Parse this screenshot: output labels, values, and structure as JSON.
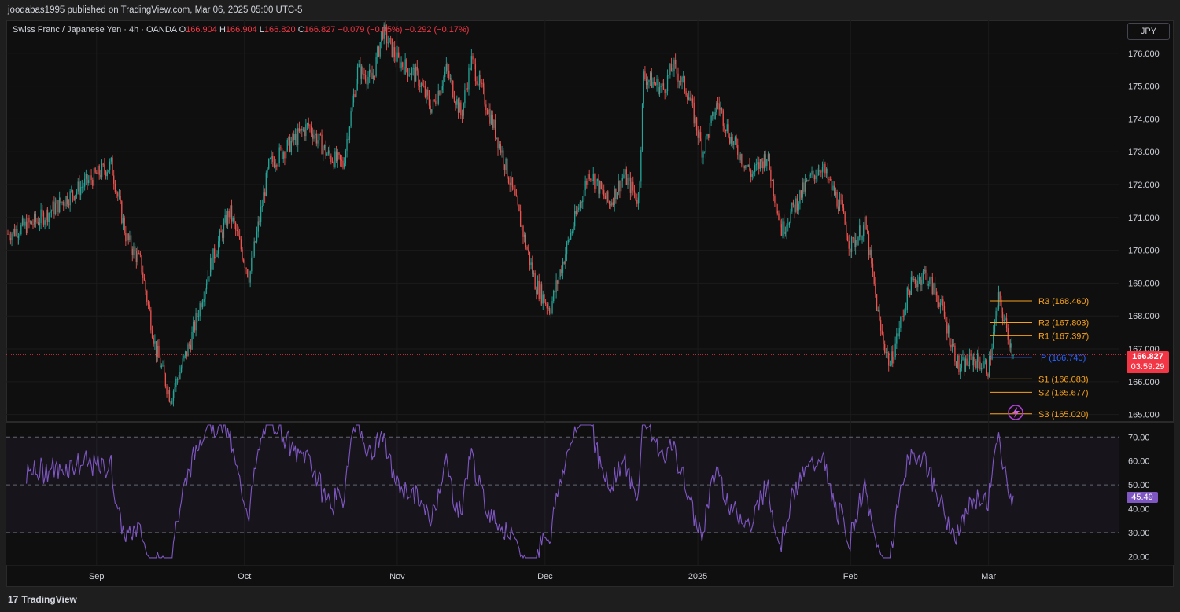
{
  "header": {
    "published_by": "joodabas1995 published on TradingView.com, Mar 06, 2025 05:00 UTC-5"
  },
  "legend": {
    "symbol": "Swiss Franc / Japanese Yen · 4h · OANDA",
    "open_label": "O",
    "open": "166.904",
    "high_label": "H",
    "high": "166.904",
    "low_label": "L",
    "low": "166.820",
    "close_label": "C",
    "close": "166.827",
    "change": "−0.079 (−0.05%)",
    "change2": "−0.292 (−0.17%)"
  },
  "currency_button": "JPY",
  "last_price": {
    "price": "166.827",
    "countdown": "03:59:29"
  },
  "rsi_value": "45.49",
  "footer": {
    "brand": "TradingView",
    "logo": "17"
  },
  "colors": {
    "up": "#26a69a",
    "down": "#ef5350",
    "pivot_resistance": "#f7a21b",
    "pivot_point": "#2962ff",
    "rsi_line": "#7e57c2",
    "last_price": "#f23645"
  },
  "chart_data": [
    {
      "type": "candlestick",
      "title": "Swiss Franc / Japanese Yen · 4h · OANDA",
      "x_ticks": [
        "Sep",
        "Oct",
        "Nov",
        "Dec",
        "2025",
        "Feb",
        "Mar"
      ],
      "y_ticks": [
        165.0,
        166.0,
        167.0,
        168.0,
        169.0,
        170.0,
        171.0,
        172.0,
        173.0,
        174.0,
        175.0,
        176.0
      ],
      "ylim": [
        164.8,
        177.0
      ],
      "approx_close_path": [
        {
          "date": "2024-08-14",
          "price": 170.5
        },
        {
          "date": "2024-08-20",
          "price": 170.9
        },
        {
          "date": "2024-08-26",
          "price": 171.6
        },
        {
          "date": "2024-09-01",
          "price": 172.3
        },
        {
          "date": "2024-09-04",
          "price": 172.6
        },
        {
          "date": "2024-09-07",
          "price": 170.4
        },
        {
          "date": "2024-09-10",
          "price": 169.6
        },
        {
          "date": "2024-09-13",
          "price": 167.0
        },
        {
          "date": "2024-09-16",
          "price": 165.5
        },
        {
          "date": "2024-09-20",
          "price": 167.2
        },
        {
          "date": "2024-09-24",
          "price": 169.5
        },
        {
          "date": "2024-09-28",
          "price": 171.2
        },
        {
          "date": "2024-10-02",
          "price": 169.2
        },
        {
          "date": "2024-10-06",
          "price": 172.6
        },
        {
          "date": "2024-10-10",
          "price": 173.2
        },
        {
          "date": "2024-10-14",
          "price": 173.8
        },
        {
          "date": "2024-10-18",
          "price": 172.9
        },
        {
          "date": "2024-10-21",
          "price": 172.6
        },
        {
          "date": "2024-10-24",
          "price": 175.5
        },
        {
          "date": "2024-10-27",
          "price": 175.2
        },
        {
          "date": "2024-10-29",
          "price": 176.7
        },
        {
          "date": "2024-11-01",
          "price": 175.8
        },
        {
          "date": "2024-11-05",
          "price": 175.3
        },
        {
          "date": "2024-11-08",
          "price": 174.3
        },
        {
          "date": "2024-11-11",
          "price": 175.5
        },
        {
          "date": "2024-11-14",
          "price": 174.1
        },
        {
          "date": "2024-11-16",
          "price": 175.8
        },
        {
          "date": "2024-11-19",
          "price": 174.5
        },
        {
          "date": "2024-11-22",
          "price": 173.1
        },
        {
          "date": "2024-11-25",
          "price": 171.5
        },
        {
          "date": "2024-11-29",
          "price": 169.0
        },
        {
          "date": "2024-12-02",
          "price": 168.2
        },
        {
          "date": "2024-12-06",
          "price": 170.4
        },
        {
          "date": "2024-12-10",
          "price": 172.4
        },
        {
          "date": "2024-12-14",
          "price": 171.4
        },
        {
          "date": "2024-12-17",
          "price": 172.3
        },
        {
          "date": "2024-12-20",
          "price": 171.5
        },
        {
          "date": "2024-12-21",
          "price": 175.3
        },
        {
          "date": "2024-12-25",
          "price": 174.9
        },
        {
          "date": "2024-12-27",
          "price": 175.6
        },
        {
          "date": "2024-12-30",
          "price": 174.8
        },
        {
          "date": "2025-01-02",
          "price": 173.0
        },
        {
          "date": "2025-01-05",
          "price": 174.5
        },
        {
          "date": "2025-01-08",
          "price": 173.3
        },
        {
          "date": "2025-01-12",
          "price": 172.3
        },
        {
          "date": "2025-01-15",
          "price": 172.9
        },
        {
          "date": "2025-01-18",
          "price": 170.6
        },
        {
          "date": "2025-01-23",
          "price": 172.0
        },
        {
          "date": "2025-01-26",
          "price": 172.6
        },
        {
          "date": "2025-01-30",
          "price": 171.3
        },
        {
          "date": "2025-02-01",
          "price": 170.1
        },
        {
          "date": "2025-02-04",
          "price": 170.8
        },
        {
          "date": "2025-02-07",
          "price": 167.6
        },
        {
          "date": "2025-02-09",
          "price": 166.5
        },
        {
          "date": "2025-02-13",
          "price": 168.9
        },
        {
          "date": "2025-02-16",
          "price": 169.3
        },
        {
          "date": "2025-02-19",
          "price": 168.5
        },
        {
          "date": "2025-02-23",
          "price": 166.4
        },
        {
          "date": "2025-02-26",
          "price": 166.7
        },
        {
          "date": "2025-03-01",
          "price": 166.4
        },
        {
          "date": "2025-03-03",
          "price": 168.5
        },
        {
          "date": "2025-03-06",
          "price": 166.827
        }
      ],
      "pivots": [
        {
          "name": "R3",
          "label": "R3 (168.460)",
          "value": 168.46
        },
        {
          "name": "R2",
          "label": "R2 (167.803)",
          "value": 167.803
        },
        {
          "name": "R1",
          "label": "R1 (167.397)",
          "value": 167.397
        },
        {
          "name": "P",
          "label": "P (166.740)",
          "value": 166.74
        },
        {
          "name": "S1",
          "label": "S1 (166.083)",
          "value": 166.083
        },
        {
          "name": "S2",
          "label": "S2 (165.677)",
          "value": 165.677
        },
        {
          "name": "S3",
          "label": "S3 (165.020)",
          "value": 165.02
        }
      ]
    },
    {
      "type": "line",
      "y_ticks": [
        20.0,
        30.0,
        40.0,
        50.0,
        60.0,
        70.0
      ],
      "ylim": [
        16.5,
        76.0
      ],
      "bands": [
        30,
        50,
        70
      ],
      "last_value": 45.49
    }
  ]
}
